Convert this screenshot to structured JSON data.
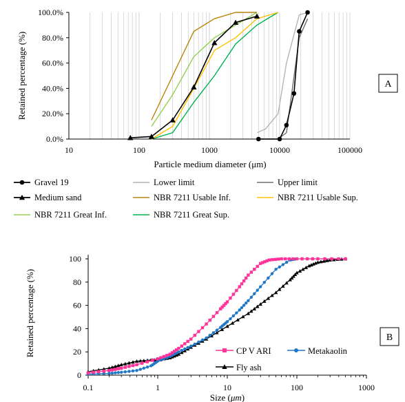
{
  "chart_data": [
    {
      "type": "line",
      "panel_label": "A",
      "xlabel": "Particle medium diameter (μm)",
      "ylabel": "Retained percentage (%)",
      "xscale": "log",
      "xlim": [
        10,
        100000
      ],
      "ylim": [
        0,
        100
      ],
      "x_ticks": [
        "10",
        "100",
        "1000",
        "10000",
        "100000"
      ],
      "y_ticks": [
        "0.0%",
        "20.0%",
        "40.0%",
        "60.0%",
        "80.0%",
        "100.0%"
      ],
      "grid": "vertical gridlines at each log decade subdivision",
      "legend_position": "bottom",
      "series": [
        {
          "name": "Gravel 19",
          "color": "#000000",
          "marker": "circle",
          "x": [
            5000,
            10000,
            12500,
            16000,
            19000,
            25000
          ],
          "y": [
            0,
            0,
            11,
            36,
            85,
            100
          ]
        },
        {
          "name": "Lower limit",
          "color": "#b4b4b4",
          "x": [
            4800,
            6300,
            9500,
            12500,
            19000,
            25000
          ],
          "y": [
            5,
            8,
            20,
            60,
            98,
            100
          ]
        },
        {
          "name": "Upper limit",
          "color": "#6e6e6e",
          "x": [
            4800,
            9500,
            12500,
            19000,
            25000
          ],
          "y": [
            0,
            0,
            5,
            80,
            95
          ]
        },
        {
          "name": "Medium  sand",
          "color": "#000000",
          "marker": "triangle",
          "x": [
            75,
            150,
            300,
            600,
            1180,
            2360,
            4750
          ],
          "y": [
            1,
            2,
            15,
            41,
            76,
            92,
            97
          ]
        },
        {
          "name": "NBR 7211 Usable Inf.",
          "color": "#b8860b",
          "x": [
            150,
            300,
            600,
            1180,
            2360,
            4750
          ],
          "y": [
            15,
            50,
            85,
            95,
            100,
            100
          ]
        },
        {
          "name": "NBR 7211 Usable Sup.",
          "color": "#ffc000",
          "x": [
            150,
            300,
            600,
            1180,
            2360,
            4750,
            9500
          ],
          "y": [
            0,
            10,
            40,
            70,
            80,
            95,
            100
          ]
        },
        {
          "name": "NBR 7211 Great Inf.",
          "color": "#92d050",
          "x": [
            150,
            300,
            600,
            1180,
            2360,
            4750
          ],
          "y": [
            10,
            35,
            65,
            80,
            90,
            100
          ]
        },
        {
          "name": "NBR 7211 Great Sup.",
          "color": "#00b050",
          "x": [
            150,
            300,
            600,
            1180,
            2360,
            4750,
            9500
          ],
          "y": [
            0,
            5,
            29,
            50,
            75,
            90,
            100
          ]
        }
      ]
    },
    {
      "type": "line",
      "panel_label": "B",
      "xlabel": "Size (",
      "xlabel_unit": "μm",
      "xlabel_end": ")",
      "ylabel": "Retained percentage (%)",
      "xscale": "log",
      "xlim": [
        0.1,
        1000
      ],
      "ylim": [
        0,
        100
      ],
      "x_ticks": [
        "0.1",
        "1",
        "10",
        "100",
        "1000"
      ],
      "y_ticks": [
        "0",
        "20",
        "40",
        "60",
        "80",
        "100"
      ],
      "grid": "none",
      "legend_position": "lower-right inside plot",
      "series": [
        {
          "name": "CP V ARI",
          "color": "#ff3399",
          "marker": "square",
          "x": [
            0.1,
            0.2,
            0.3,
            0.5,
            1,
            1.5,
            2,
            3,
            5,
            8,
            10,
            15,
            20,
            30,
            40,
            60,
            100,
            200,
            500
          ],
          "y": [
            2,
            4,
            6,
            9,
            14,
            18,
            23,
            31,
            44,
            57,
            63,
            76,
            86,
            96,
            99,
            100,
            100,
            100,
            100
          ]
        },
        {
          "name": "Metakaolin",
          "color": "#1f77c8",
          "marker": "circle",
          "x": [
            0.1,
            0.2,
            0.3,
            0.5,
            0.8,
            1,
            1.5,
            2,
            3,
            5,
            8,
            10,
            15,
            20,
            30,
            50,
            80,
            100,
            200,
            500
          ],
          "y": [
            1,
            1.5,
            2.5,
            4,
            8,
            12,
            16,
            20,
            25,
            32,
            41,
            46,
            56,
            64,
            76,
            91,
            99,
            100,
            100,
            100
          ]
        },
        {
          "name": "Fly ash",
          "color": "#000000",
          "marker": "triangle",
          "x": [
            0.1,
            0.2,
            0.3,
            0.5,
            0.8,
            1,
            1.5,
            2,
            3,
            5,
            10,
            20,
            30,
            50,
            80,
            100,
            150,
            200,
            300,
            500
          ],
          "y": [
            3,
            6,
            9,
            12,
            13,
            13,
            15,
            18,
            24,
            31,
            42,
            53,
            61,
            71,
            82,
            88,
            94,
            97,
            99,
            100
          ]
        }
      ]
    }
  ]
}
